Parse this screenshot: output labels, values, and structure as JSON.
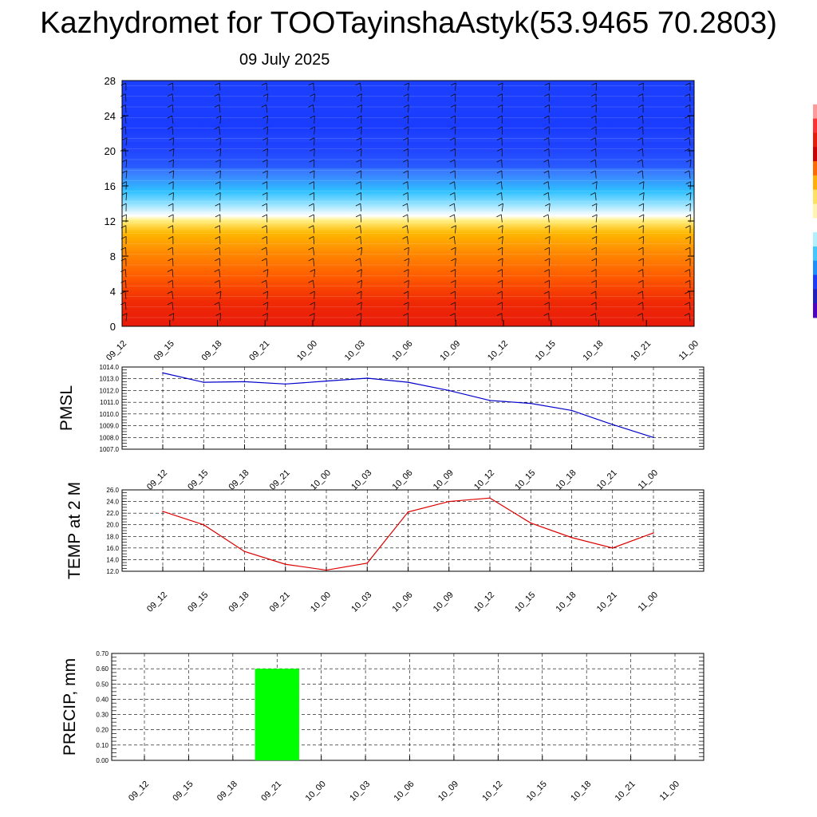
{
  "title": "Kazhydromet for TOOTayinshaAstyk(53.9465 70.2803)",
  "subtitle": "09 July 2025",
  "chart_data": [
    {
      "type": "heatmap",
      "x_ticks": [
        "09_12",
        "09_15",
        "09_18",
        "09_21",
        "10_00",
        "10_03",
        "10_06",
        "10_09",
        "10_12",
        "10_15",
        "10_18",
        "10_21",
        "11_00"
      ],
      "y_ticks": [
        0,
        4,
        8,
        12,
        16,
        20,
        24,
        28
      ],
      "ylim": [
        0,
        28
      ],
      "colors": {
        "warm_bottom": "#e81a0a",
        "warm_mid": "#ff9a00",
        "warm_top": "#ffdc40",
        "transition": "#ffffff",
        "cold_low": "#2ec0ff",
        "cold_top": "#1a3cff"
      },
      "overlay": "wind barbs"
    },
    {
      "type": "line",
      "ylabel": "PMSL",
      "x_ticks": [
        "09_12",
        "09_15",
        "09_18",
        "09_21",
        "10_00",
        "10_03",
        "10_06",
        "10_09",
        "10_12",
        "10_15",
        "10_18",
        "10_21",
        "11_00"
      ],
      "y_ticks": [
        "1007.0",
        "1008.0",
        "1009.0",
        "1010.0",
        "1011.0",
        "1012.0",
        "1013.0",
        "1014.0"
      ],
      "ylim": [
        1007,
        1014
      ],
      "series": [
        {
          "color": "#0000cc",
          "values": [
            1013.5,
            1012.7,
            1012.75,
            1012.55,
            1012.8,
            1013.05,
            1012.7,
            1012.0,
            1011.15,
            1010.9,
            1010.3,
            1009.1,
            1008.0
          ]
        }
      ],
      "grid": true
    },
    {
      "type": "line",
      "ylabel": "TEMP at 2 M",
      "x_ticks": [
        "09_12",
        "09_15",
        "09_18",
        "09_21",
        "10_00",
        "10_03",
        "10_06",
        "10_09",
        "10_12",
        "10_15",
        "10_18",
        "10_21",
        "11_00"
      ],
      "y_ticks": [
        "12.0",
        "14.0",
        "16.0",
        "18.0",
        "20.0",
        "22.0",
        "24.0",
        "26.0"
      ],
      "ylim": [
        12,
        26
      ],
      "series": [
        {
          "color": "#dd0000",
          "values": [
            22.3,
            20.0,
            15.4,
            13.2,
            12.2,
            13.4,
            22.2,
            24.0,
            24.6,
            20.3,
            17.8,
            16.0,
            18.6
          ]
        }
      ],
      "grid": true
    },
    {
      "type": "bar",
      "ylabel": "PRECIP, mm",
      "x_ticks": [
        "09_12",
        "09_15",
        "09_18",
        "09_21",
        "10_00",
        "10_03",
        "10_06",
        "10_09",
        "10_12",
        "10_15",
        "10_18",
        "10_21",
        "11_00"
      ],
      "y_ticks": [
        "0.00",
        "0.10",
        "0.20",
        "0.30",
        "0.40",
        "0.50",
        "0.60",
        "0.70"
      ],
      "ylim": [
        0,
        0.7
      ],
      "bars": [
        {
          "x": "09_21",
          "value": 0.6,
          "color": "#00ff00"
        }
      ],
      "grid": true
    }
  ],
  "colorbar": {
    "colors": [
      "#ffffff",
      "#ff9a9a",
      "#ff3030",
      "#e81a0a",
      "#cc0000",
      "#ff6a00",
      "#ffb000",
      "#ffe060",
      "#fff4b0",
      "#ffffff",
      "#b0f0ff",
      "#40c8ff",
      "#1a90ff",
      "#1a3cff",
      "#2020c0",
      "#5000c0"
    ]
  }
}
